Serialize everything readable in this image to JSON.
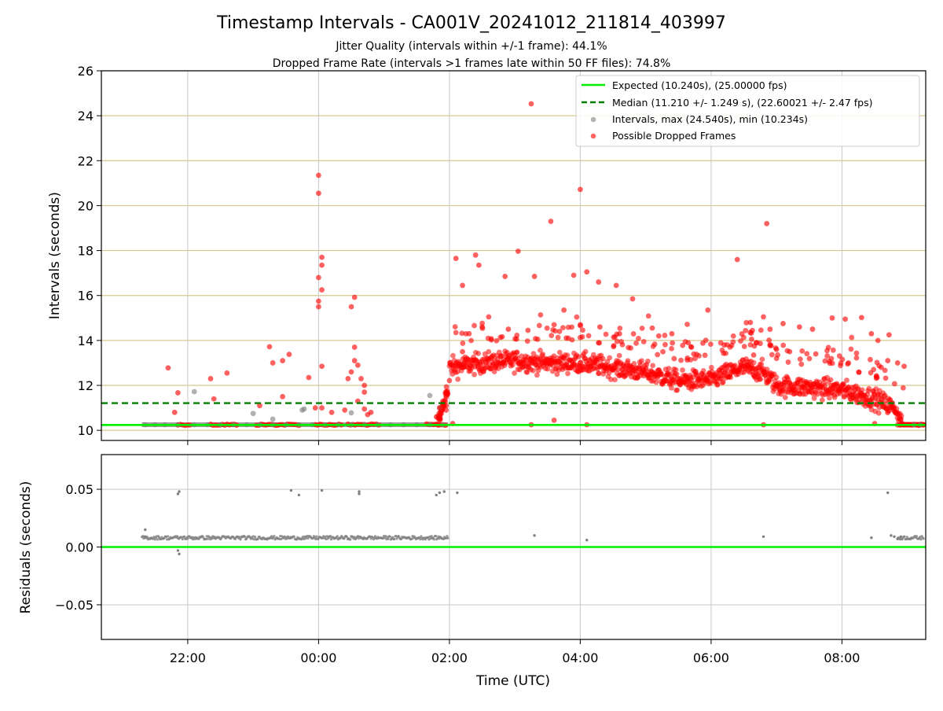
{
  "colors": {
    "expected": "#00ee00",
    "median": "#008000",
    "intervals": "#808080",
    "dropped": "#ff0000",
    "hgrid_top": "#d8c88e",
    "grid": "#c8c8c8"
  },
  "chart_data": [
    {
      "type": "scatter",
      "title": "Timestamp Intervals - CA001V_20241012_211814_403997",
      "subtitle_lines": [
        "Jitter Quality (intervals within +/-1 frame): 44.1%",
        "Dropped Frame Rate (intervals >1 frames late within 50 FF files): 74.8%"
      ],
      "xlabel": "",
      "ylabel": "Intervals (seconds)",
      "xlim_hours": [
        20.68,
        33.28
      ],
      "x_ticks": [
        {
          "x": 22,
          "label": "22:00"
        },
        {
          "x": 24,
          "label": "00:00"
        },
        {
          "x": 26,
          "label": "02:00"
        },
        {
          "x": 28,
          "label": "04:00"
        },
        {
          "x": 30,
          "label": "06:00"
        },
        {
          "x": 32,
          "label": "08:00"
        }
      ],
      "ylim": [
        9.55,
        26
      ],
      "y_ticks": [
        10,
        12,
        14,
        16,
        18,
        20,
        22,
        24,
        26
      ],
      "grid": true,
      "legend_position": "top-right",
      "legend": [
        "Expected (10.240s), (25.00000 fps)",
        "Median (11.210 +/- 1.249 s), (22.60021 +/- 2.47 fps)",
        "Intervals, max (24.540s), min (10.234s)",
        "Possible Dropped Frames"
      ],
      "expected_value": 10.24,
      "median_value": 11.21,
      "series": [
        {
          "name": "Intervals, max (24.540s), min (10.234s)",
          "points": [
            [
              21.35,
              10.25
            ],
            [
              21.5,
              10.25
            ],
            [
              21.65,
              10.25
            ],
            [
              21.85,
              10.25
            ],
            [
              22.1,
              10.25
            ],
            [
              22.3,
              10.25
            ],
            [
              22.5,
              10.25
            ],
            [
              22.7,
              10.25
            ],
            [
              22.9,
              10.25
            ],
            [
              23.1,
              10.25
            ],
            [
              23.3,
              10.25
            ],
            [
              23.5,
              10.25
            ],
            [
              23.7,
              10.25
            ],
            [
              23.9,
              10.25
            ],
            [
              24.1,
              10.25
            ],
            [
              24.3,
              10.25
            ],
            [
              24.5,
              10.25
            ],
            [
              24.7,
              10.25
            ],
            [
              24.9,
              10.25
            ],
            [
              25.1,
              10.25
            ],
            [
              25.3,
              10.25
            ],
            [
              25.5,
              10.25
            ],
            [
              25.7,
              10.25
            ],
            [
              25.9,
              10.25
            ],
            [
              22.1,
              11.72
            ],
            [
              23.0,
              10.75
            ],
            [
              23.3,
              10.5
            ],
            [
              23.75,
              10.9
            ],
            [
              23.78,
              10.95
            ],
            [
              24.5,
              10.78
            ],
            [
              25.7,
              11.55
            ],
            [
              25.85,
              11.0
            ],
            [
              33.1,
              10.25
            ],
            [
              33.2,
              10.25
            ]
          ]
        },
        {
          "name": "Possible Dropped Frames",
          "points": [
            [
              21.7,
              12.78
            ],
            [
              21.85,
              11.67
            ],
            [
              21.8,
              10.8
            ],
            [
              22.35,
              12.3
            ],
            [
              22.6,
              12.55
            ],
            [
              22.4,
              11.4
            ],
            [
              23.1,
              11.1
            ],
            [
              23.3,
              13.0
            ],
            [
              23.45,
              13.1
            ],
            [
              23.55,
              13.38
            ],
            [
              23.25,
              13.72
            ],
            [
              23.45,
              11.5
            ],
            [
              24.0,
              21.35
            ],
            [
              24.0,
              20.55
            ],
            [
              24.05,
              17.7
            ],
            [
              24.05,
              17.35
            ],
            [
              24.0,
              16.8
            ],
            [
              24.05,
              16.25
            ],
            [
              24.0,
              15.75
            ],
            [
              24.0,
              15.5
            ],
            [
              24.05,
              12.85
            ],
            [
              24.05,
              11.0
            ],
            [
              23.85,
              12.35
            ],
            [
              23.95,
              11.0
            ],
            [
              24.2,
              10.8
            ],
            [
              24.55,
              15.92
            ],
            [
              24.5,
              15.5
            ],
            [
              24.55,
              13.7
            ],
            [
              24.55,
              13.1
            ],
            [
              24.6,
              12.9
            ],
            [
              24.5,
              12.6
            ],
            [
              24.65,
              12.3
            ],
            [
              24.45,
              12.3
            ],
            [
              24.7,
              12.0
            ],
            [
              24.7,
              11.7
            ],
            [
              24.6,
              11.3
            ],
            [
              24.7,
              10.95
            ],
            [
              24.75,
              10.7
            ],
            [
              24.4,
              10.9
            ],
            [
              24.8,
              10.8
            ],
            [
              25.95,
              11.1
            ],
            [
              25.9,
              11.3
            ],
            [
              25.85,
              11.0
            ],
            [
              25.95,
              10.9
            ],
            [
              25.8,
              10.6
            ],
            [
              25.97,
              11.6
            ],
            [
              26.1,
              17.65
            ],
            [
              26.2,
              16.45
            ],
            [
              26.4,
              17.8
            ],
            [
              26.45,
              17.35
            ],
            [
              26.6,
              15.05
            ],
            [
              26.85,
              16.85
            ],
            [
              27.05,
              17.97
            ],
            [
              27.3,
              16.85
            ],
            [
              27.25,
              24.53
            ],
            [
              27.55,
              19.3
            ],
            [
              27.75,
              15.35
            ],
            [
              27.9,
              16.9
            ],
            [
              28.0,
              20.72
            ],
            [
              28.1,
              17.05
            ],
            [
              28.28,
              16.6
            ],
            [
              28.55,
              16.45
            ],
            [
              28.8,
              15.85
            ],
            [
              29.1,
              14.55
            ],
            [
              29.4,
              14.3
            ],
            [
              29.65,
              13.9
            ],
            [
              29.95,
              15.35
            ],
            [
              30.4,
              17.6
            ],
            [
              30.6,
              14.8
            ],
            [
              30.8,
              15.05
            ],
            [
              30.85,
              19.2
            ],
            [
              30.9,
              14.5
            ],
            [
              30.65,
              13.35
            ],
            [
              31.1,
              14.75
            ],
            [
              31.35,
              14.6
            ],
            [
              31.55,
              14.5
            ],
            [
              31.0,
              13.6
            ],
            [
              31.85,
              15.0
            ],
            [
              32.05,
              14.95
            ],
            [
              32.3,
              15.02
            ],
            [
              32.45,
              14.3
            ],
            [
              32.55,
              14.0
            ],
            [
              32.72,
              14.25
            ],
            [
              32.7,
              13.1
            ],
            [
              32.85,
              13.0
            ],
            [
              32.95,
              12.85
            ],
            [
              26.05,
              10.3
            ],
            [
              27.25,
              10.25
            ],
            [
              27.6,
              10.45
            ],
            [
              28.1,
              10.25
            ],
            [
              30.8,
              10.25
            ],
            [
              32.5,
              10.3
            ],
            [
              26.2,
              13.5
            ],
            [
              26.3,
              14.3
            ],
            [
              26.5,
              14.6
            ],
            [
              26.9,
              14.5
            ],
            [
              27.2,
              14.45
            ],
            [
              27.6,
              14.7
            ],
            [
              28.3,
              14.6
            ],
            [
              28.6,
              14.3
            ],
            [
              29.2,
              14.2
            ],
            [
              29.7,
              13.7
            ],
            [
              30.2,
              13.8
            ],
            [
              30.7,
              13.9
            ],
            [
              31.2,
              13.5
            ],
            [
              31.6,
              13.4
            ],
            [
              32.1,
              13.0
            ],
            [
              32.6,
              12.8
            ]
          ]
        }
      ],
      "dense_bands": {
        "baseline_10_25": [
          [
            21.85,
            22.05
          ],
          [
            22.35,
            22.75
          ],
          [
            23.05,
            23.7
          ],
          [
            23.95,
            24.38
          ],
          [
            24.45,
            24.95
          ],
          [
            25.65,
            25.95
          ],
          [
            32.85,
            33.25
          ]
        ],
        "elevated_hours_center_value": [
          [
            26.0,
            12.8
          ],
          [
            26.5,
            13.0
          ],
          [
            27.0,
            13.1
          ],
          [
            27.5,
            13.0
          ],
          [
            28.0,
            13.0
          ],
          [
            28.5,
            12.8
          ],
          [
            29.0,
            12.6
          ],
          [
            29.5,
            12.2
          ],
          [
            30.0,
            12.25
          ],
          [
            30.5,
            12.8
          ],
          [
            30.8,
            12.6
          ],
          [
            31.0,
            12.0
          ],
          [
            31.5,
            11.9
          ],
          [
            32.0,
            11.8
          ],
          [
            32.5,
            11.4
          ],
          [
            32.8,
            11.0
          ],
          [
            32.9,
            10.5
          ]
        ]
      }
    },
    {
      "type": "scatter",
      "xlabel": "Time (UTC)",
      "ylabel": "Residuals (seconds)",
      "xlim_hours": [
        20.68,
        33.28
      ],
      "ylim": [
        -0.08,
        0.08
      ],
      "y_ticks": [
        {
          "v": 0.05,
          "label": "0.05"
        },
        {
          "v": 0.0,
          "label": "0.00"
        },
        {
          "v": -0.05,
          "label": "−0.05"
        }
      ],
      "grid": true,
      "zero_line": 0.0,
      "series": [
        {
          "name": "",
          "points": [
            [
              21.35,
              0.015
            ],
            [
              21.35,
              0.009
            ],
            [
              21.85,
              0.046
            ],
            [
              21.87,
              0.048
            ],
            [
              21.85,
              -0.003
            ],
            [
              21.87,
              -0.006
            ],
            [
              23.58,
              0.049
            ],
            [
              23.7,
              0.045
            ],
            [
              24.05,
              0.049
            ],
            [
              24.62,
              0.046
            ],
            [
              24.62,
              0.048
            ],
            [
              25.8,
              0.045
            ],
            [
              25.85,
              0.047
            ],
            [
              25.92,
              0.048
            ],
            [
              26.12,
              0.047
            ],
            [
              27.3,
              0.01
            ],
            [
              28.1,
              0.006
            ],
            [
              30.8,
              0.009
            ],
            [
              32.45,
              0.008
            ],
            [
              32.7,
              0.047
            ],
            [
              32.75,
              0.01
            ],
            [
              32.8,
              0.009
            ],
            [
              32.85,
              0.007
            ],
            [
              32.9,
              0.009
            ]
          ]
        }
      ],
      "dense_bands": {
        "residual_cluster": [
          [
            21.3,
            25.98,
            0.008
          ],
          [
            32.85,
            33.25,
            0.008
          ]
        ]
      }
    }
  ]
}
